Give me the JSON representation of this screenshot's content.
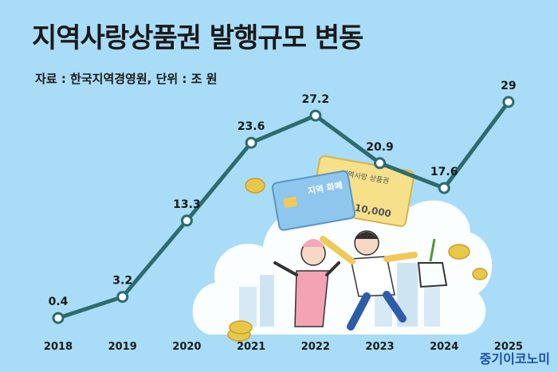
{
  "title": "지역사랑상품권 발행규모 변동",
  "source": "자료 : 한국지역경영원, 단위 : 조 원",
  "brand": "중기이코노미",
  "illustration": {
    "card_label": "지역 화폐",
    "voucher_label": "지역사랑 상품권",
    "voucher_amount": "10,000"
  },
  "colors": {
    "background": "#a9dcf6",
    "line": "#2e6b6f",
    "marker_fill": "#ffffff",
    "cloud": "#ffffff"
  },
  "chart_data": {
    "type": "line",
    "title": "지역사랑상품권 발행규모 변동",
    "xlabel": "",
    "ylabel": "",
    "categories": [
      "2018",
      "2019",
      "2020",
      "2021",
      "2022",
      "2023",
      "2024",
      "2025"
    ],
    "series": [
      {
        "values": [
          0.4,
          3.2,
          13.3,
          23.6,
          27.2,
          20.9,
          17.6,
          29
        ]
      }
    ],
    "value_labels": [
      "0.4",
      "3.2",
      "13.3",
      "23.6",
      "27.2",
      "20.9",
      "17.6",
      "29"
    ],
    "ylim": [
      0,
      29
    ],
    "grid": false,
    "legend": "none"
  }
}
